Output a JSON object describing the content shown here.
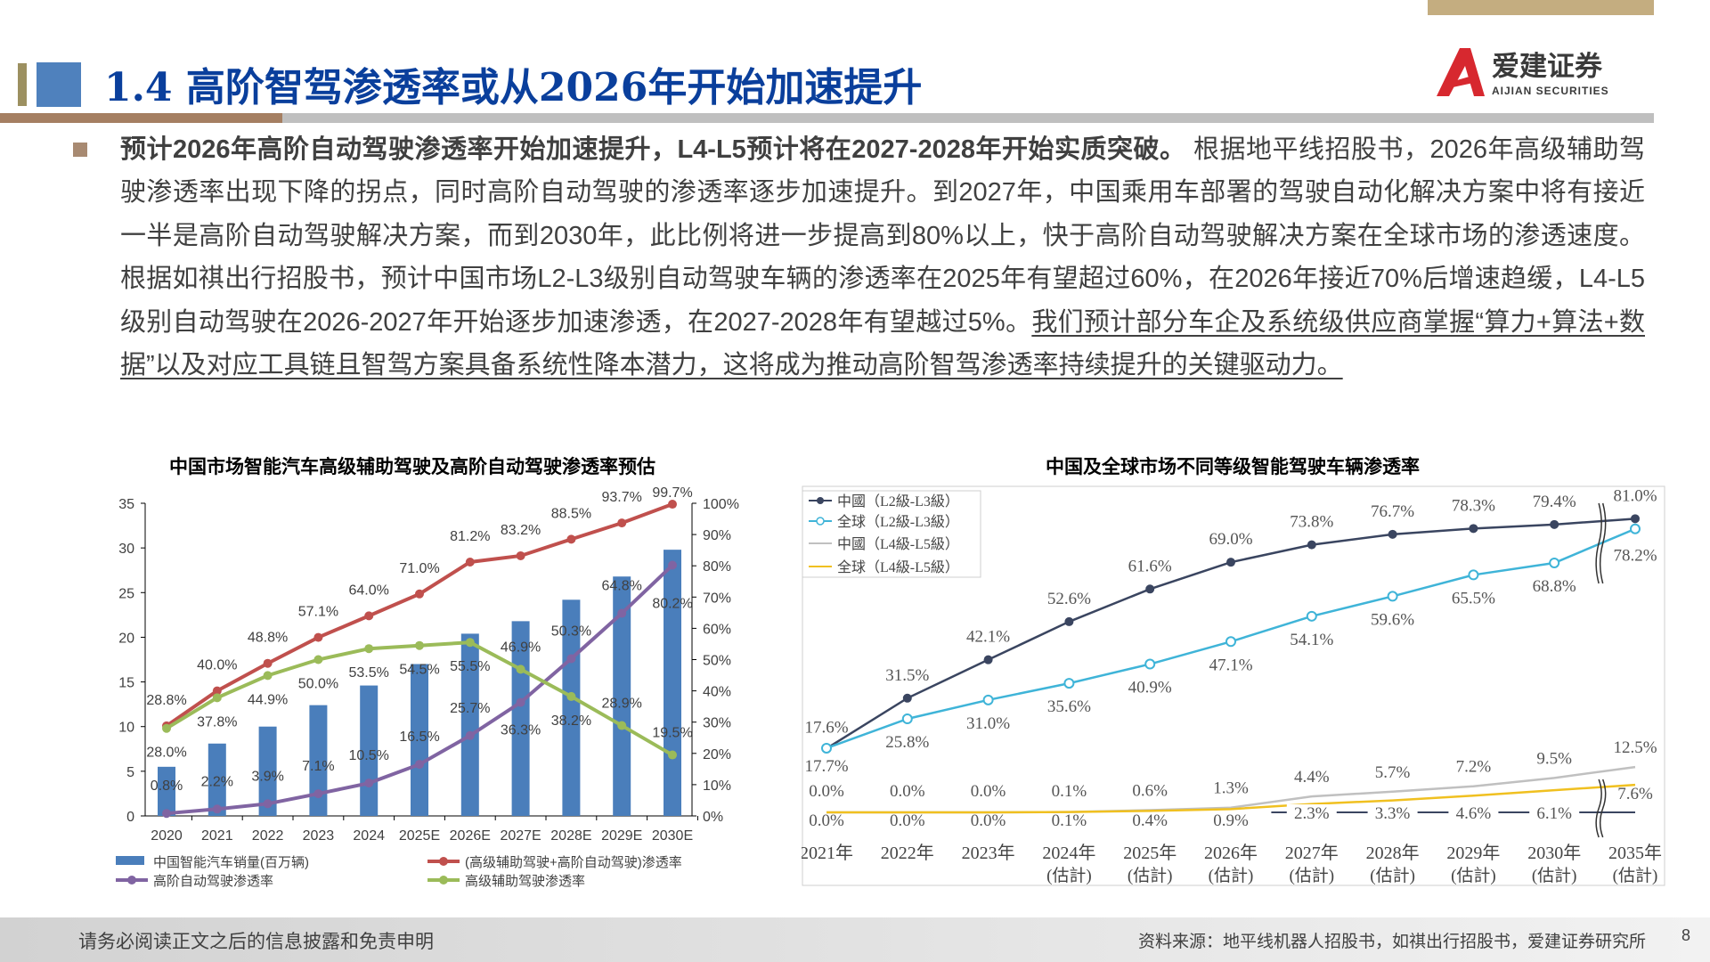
{
  "header": {
    "title": "1.4 高阶智驾渗透率或从2026年开始加速提升",
    "logo_text_cn": "爱建证券",
    "logo_text_en": "AIJIAN SECURITIES",
    "brand_colors": {
      "title": "#0a3f9c",
      "accent_blue": "#4f81bd",
      "accent_brown": "#a57f62",
      "logo_red": "#d7282f"
    }
  },
  "body": {
    "bold_lead": "预计2026年高阶自动驾驶渗透率开始加速提升，L4-L5预计将在2027-2028年开始实质突破。",
    "normal_text": "根据地平线招股书，2026年高级辅助驾驶渗透率出现下降的拐点，同时高阶自动驾驶的渗透率逐步加速提升。到2027年，中国乘用车部署的驾驶自动化解决方案中将有接近一半是高阶自动驾驶解决方案，而到2030年，此比例将进一步提高到80%以上，快于高阶自动驾驶解决方案在全球市场的渗透速度。根据如祺出行招股书，预计中国市场L2-L3级别自动驾驶车辆的渗透率在2025年有望超过60%，在2026年接近70%后增速趋缓，L4-L5级别自动驾驶在2026-2027年开始逐步加速渗透，在2027-2028年有望越过5%。",
    "underlined_text": "我们预计部分车企及系统级供应商掌握“算力+算法+数据”以及对应工具链且智驾方案具备系统性降本潜力，这将成为推动高阶智驾渗透率持续提升的关键驱动力。"
  },
  "chart_data": [
    {
      "type": "bar+line",
      "title": "中国市场智能汽车高级辅助驾驶及高阶自动驾驶渗透率预估",
      "categories": [
        "2020",
        "2021",
        "2022",
        "2023",
        "2024",
        "2025E",
        "2026E",
        "2027E",
        "2028E",
        "2029E",
        "2030E"
      ],
      "ylim_left": [
        0,
        35
      ],
      "left_ticks": [
        "0",
        "5",
        "10",
        "15",
        "20",
        "25",
        "30",
        "35"
      ],
      "ylim_right": [
        0,
        100
      ],
      "right_ticks": [
        "0%",
        "10%",
        "20%",
        "30%",
        "40%",
        "50%",
        "60%",
        "70%",
        "80%",
        "90%",
        "100%"
      ],
      "legend_position": "bottom",
      "series": [
        {
          "name": "中国智能汽车销量(百万辆)",
          "kind": "bar",
          "axis": "left",
          "color": "#4a7ebb",
          "values": [
            5.5,
            8.1,
            10.0,
            12.4,
            14.6,
            17.0,
            20.4,
            21.8,
            24.2,
            26.8,
            29.8
          ]
        },
        {
          "name": "(高级辅助驾驶+高阶自动驾驶)渗透率",
          "kind": "line",
          "axis": "right",
          "color": "#c0504d",
          "values": [
            28.8,
            40.0,
            48.8,
            57.1,
            64.0,
            71.0,
            81.2,
            83.2,
            88.5,
            93.7,
            99.7
          ],
          "labels": [
            "28.8%",
            "40.0%",
            "48.8%",
            "57.1%",
            "64.0%",
            "71.0%",
            "81.2%",
            "83.2%",
            "88.5%",
            "93.7%",
            "99.7%"
          ]
        },
        {
          "name": "高阶自动驾驶渗透率",
          "kind": "line",
          "axis": "right",
          "color": "#8064a2",
          "values": [
            0.8,
            2.2,
            3.9,
            7.1,
            10.5,
            16.5,
            25.7,
            36.3,
            50.3,
            64.8,
            80.2
          ],
          "labels": [
            "0.8%",
            "2.2%",
            "3.9%",
            "7.1%",
            "10.5%",
            "16.5%",
            "25.7%",
            "36.3%",
            "50.3%",
            "64.8%",
            "80.2%"
          ]
        },
        {
          "name": "高级辅助驾驶渗透率",
          "kind": "line",
          "axis": "right",
          "color": "#9bbb59",
          "values": [
            28.0,
            37.8,
            44.9,
            50.0,
            53.5,
            54.5,
            55.5,
            46.9,
            38.2,
            28.9,
            19.5
          ],
          "labels": [
            "28.0%",
            "37.8%",
            "44.9%",
            "50.0%",
            "53.5%",
            "54.5%",
            "55.5%",
            "46.9%",
            "38.2%",
            "28.9%",
            "19.5%"
          ]
        }
      ]
    },
    {
      "type": "line",
      "title": "中国及全球市场不同等级智能驾驶车辆渗透率",
      "categories": [
        "2021年",
        "2022年",
        "2023年",
        "2024年",
        "2025年",
        "2026年",
        "2027年",
        "2028年",
        "2029年",
        "2030年",
        "2035年"
      ],
      "category_sublabels": [
        "",
        "",
        "",
        "(估計)",
        "(估計)",
        "(估計)",
        "(估計)",
        "(估計)",
        "(估計)",
        "(估計)",
        "(估計)"
      ],
      "axis_break": "between 2030年 and 2035年",
      "legend_position": "top-left",
      "series": [
        {
          "name": "中國（L2級-L3級）",
          "color": "#3a4560",
          "marker": "filled-circle",
          "values": [
            17.6,
            31.5,
            42.1,
            52.6,
            61.6,
            69.0,
            73.8,
            76.7,
            78.3,
            79.4,
            81.0
          ],
          "labels": [
            "17.6%",
            "31.5%",
            "42.1%",
            "52.6%",
            "61.6%",
            "69.0%",
            "73.8%",
            "76.7%",
            "78.3%",
            "79.4%",
            "81.0%"
          ]
        },
        {
          "name": "全球（L2級-L3級）",
          "color": "#3fb4d8",
          "marker": "hollow-circle",
          "values": [
            17.7,
            25.8,
            31.0,
            35.6,
            40.9,
            47.1,
            54.1,
            59.6,
            65.5,
            68.8,
            78.2
          ],
          "labels": [
            "17.7%",
            "25.8%",
            "31.0%",
            "35.6%",
            "40.9%",
            "47.1%",
            "54.1%",
            "59.6%",
            "65.5%",
            "68.8%",
            "78.2%"
          ]
        },
        {
          "name": "中國（L4級-L5級）",
          "color": "#c0c0c0",
          "marker": "none",
          "values": [
            0.0,
            0.0,
            0.0,
            0.1,
            0.6,
            1.3,
            4.4,
            5.7,
            7.2,
            9.5,
            12.5
          ],
          "labels": [
            "0.0%",
            "0.0%",
            "0.0%",
            "0.1%",
            "0.6%",
            "1.3%",
            "4.4%",
            "5.7%",
            "7.2%",
            "9.5%",
            "12.5%"
          ]
        },
        {
          "name": "全球（L4級-L5級）",
          "color": "#f0c020",
          "marker": "none",
          "values": [
            0.0,
            0.0,
            0.0,
            0.1,
            0.4,
            0.9,
            2.3,
            3.3,
            4.6,
            6.1,
            7.6
          ],
          "labels": [
            "0.0%",
            "0.0%",
            "0.0%",
            "0.1%",
            "0.4%",
            "0.9%",
            "2.3%",
            "3.3%",
            "4.6%",
            "6.1%",
            "7.6%"
          ]
        }
      ]
    }
  ],
  "footer": {
    "disclaimer": "请务必阅读正文之后的信息披露和免责申明",
    "source": "资料来源：地平线机器人招股书，如祺出行招股书，爱建证券研究所",
    "page_number": "8"
  }
}
